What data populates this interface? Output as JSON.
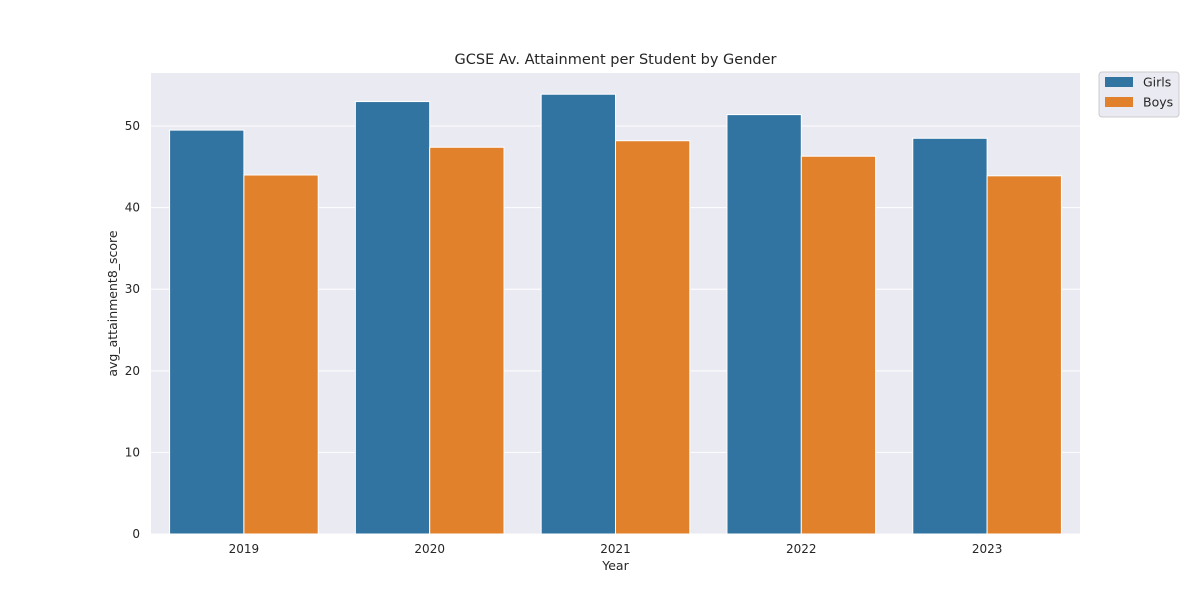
{
  "chart_data": {
    "type": "bar",
    "title": "GCSE Av. Attainment per Student by Gender",
    "xlabel": "Year",
    "ylabel": "avg_attainment8_score",
    "categories": [
      "2019",
      "2020",
      "2021",
      "2022",
      "2023"
    ],
    "series": [
      {
        "name": "Girls",
        "color": "#3274a1",
        "values": [
          49.5,
          53.0,
          53.9,
          51.4,
          48.5
        ]
      },
      {
        "name": "Boys",
        "color": "#e1812c",
        "values": [
          44.0,
          47.4,
          48.2,
          46.3,
          43.9
        ]
      }
    ],
    "ylim": [
      0,
      56.5
    ],
    "yticks": [
      0,
      10,
      20,
      30,
      40,
      50
    ],
    "grid": true,
    "legend": "outside-top-right",
    "colors": {
      "plot_background": "#eaeaf2",
      "grid": "#ffffff"
    }
  }
}
